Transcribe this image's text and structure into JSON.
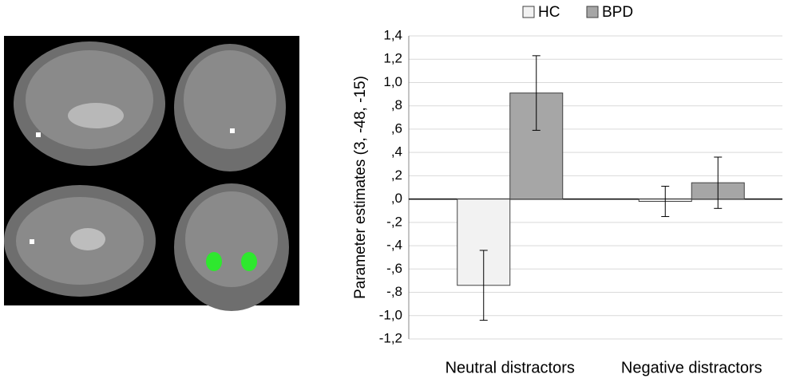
{
  "chart_data": {
    "type": "bar",
    "ylabel": "Parameter estimates (3, -48, -15)",
    "categories": [
      "Neutral distractors",
      "Negative distractors"
    ],
    "series": [
      {
        "name": "HC",
        "color": "#f2f2f2",
        "values": [
          -0.74,
          -0.02
        ],
        "errors": [
          0.3,
          0.13
        ]
      },
      {
        "name": "BPD",
        "color": "#a6a6a6",
        "values": [
          0.91,
          0.14
        ],
        "errors": [
          0.32,
          0.22
        ]
      }
    ],
    "ylim": [
      -1.2,
      1.4
    ],
    "yticks": [
      {
        "value": -1.2,
        "label": "-1,2"
      },
      {
        "value": -1.0,
        "label": "-1,0"
      },
      {
        "value": -0.8,
        "label": "-,8"
      },
      {
        "value": -0.6,
        "label": "-,6"
      },
      {
        "value": -0.4,
        "label": "-,4"
      },
      {
        "value": -0.2,
        "label": "-,2"
      },
      {
        "value": 0,
        "label": ",0"
      },
      {
        "value": 0.2,
        "label": ",2"
      },
      {
        "value": 0.4,
        "label": ",4"
      },
      {
        "value": 0.6,
        "label": ",6"
      },
      {
        "value": 0.8,
        "label": ",8"
      },
      {
        "value": 1.0,
        "label": "1,0"
      },
      {
        "value": 1.2,
        "label": "1,2"
      },
      {
        "value": 1.4,
        "label": "1,4"
      }
    ],
    "grid": true,
    "legend": "top"
  }
}
